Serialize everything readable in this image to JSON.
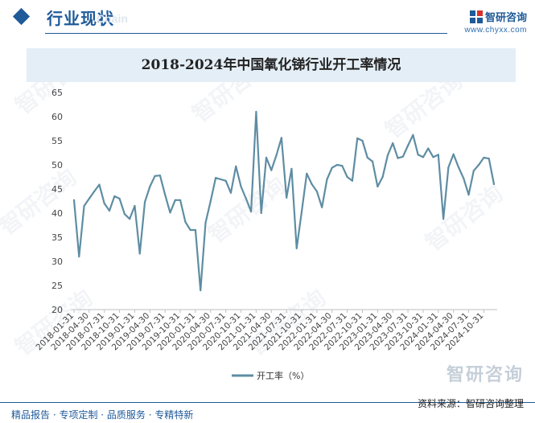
{
  "header": {
    "section_title": "行业现状",
    "section_subtitle": "Chain",
    "brand_name": "智研咨询",
    "brand_url": "www.chyxx.com"
  },
  "colors": {
    "accent": "#1f5a99",
    "series": "#5e8da3",
    "band": "#e4eef6"
  },
  "watermark": {
    "text": "智研咨询",
    "big_text": "智研咨询"
  },
  "chart_data": {
    "type": "line",
    "title": "2018-2024年中国氧化锑行业开工率情况",
    "xlabel": "",
    "ylabel": "",
    "ylim": [
      20,
      65
    ],
    "yticks": [
      20,
      25,
      30,
      35,
      40,
      45,
      50,
      55,
      60,
      65
    ],
    "grid": false,
    "legend_position": "bottom-center",
    "x_labels": [
      "2018-01-31",
      "2018-04-30",
      "2018-07-31",
      "2018-10-31",
      "2019-01-31",
      "2019-04-30",
      "2019-07-31",
      "2019-10-31",
      "2020-01-31",
      "2020-04-30",
      "2020-07-31",
      "2020-10-31",
      "2021-01-31",
      "2021-04-30",
      "2021-07-31",
      "2021-10-31",
      "2022-01-31",
      "2022-04-30",
      "2022-07-31",
      "2022-10-31",
      "2023-01-31",
      "2023-04-30",
      "2023-07-31",
      "2023-10-31",
      "2024-01-31",
      "2024-04-30",
      "2024-07-31",
      "2024-10-31"
    ],
    "series": [
      {
        "name": "开工率（%）",
        "values": [
          42.7,
          31.0,
          41.5,
          43.0,
          44.5,
          45.9,
          42.0,
          40.5,
          43.5,
          43.0,
          39.8,
          38.8,
          41.5,
          31.6,
          42.3,
          45.5,
          47.7,
          47.8,
          43.8,
          40.1,
          42.7,
          42.7,
          38.2,
          36.5,
          36.5,
          24.0,
          38.0,
          42.5,
          47.3,
          47.0,
          46.7,
          44.2,
          49.7,
          45.5,
          43.0,
          40.3,
          61.0,
          40.0,
          51.5,
          48.9,
          52.0,
          55.6,
          43.2,
          49.2,
          32.7,
          40.3,
          48.2,
          46.0,
          44.5,
          41.2,
          47.0,
          49.4,
          50.0,
          49.8,
          47.5,
          46.7,
          55.5,
          55.0,
          51.5,
          50.7,
          45.5,
          47.5,
          52.0,
          54.5,
          51.4,
          51.7,
          54.0,
          56.2,
          52.1,
          51.6,
          53.4,
          51.6,
          52.1,
          38.8,
          49.5,
          52.2,
          49.5,
          47.2,
          43.8,
          48.8,
          50.0,
          51.5,
          51.3,
          46.0
        ]
      }
    ]
  },
  "footer": {
    "tagline": "精品报告 · 专项定制 · 品质服务 · 专精特新",
    "source": "资料来源：智研咨询整理"
  }
}
